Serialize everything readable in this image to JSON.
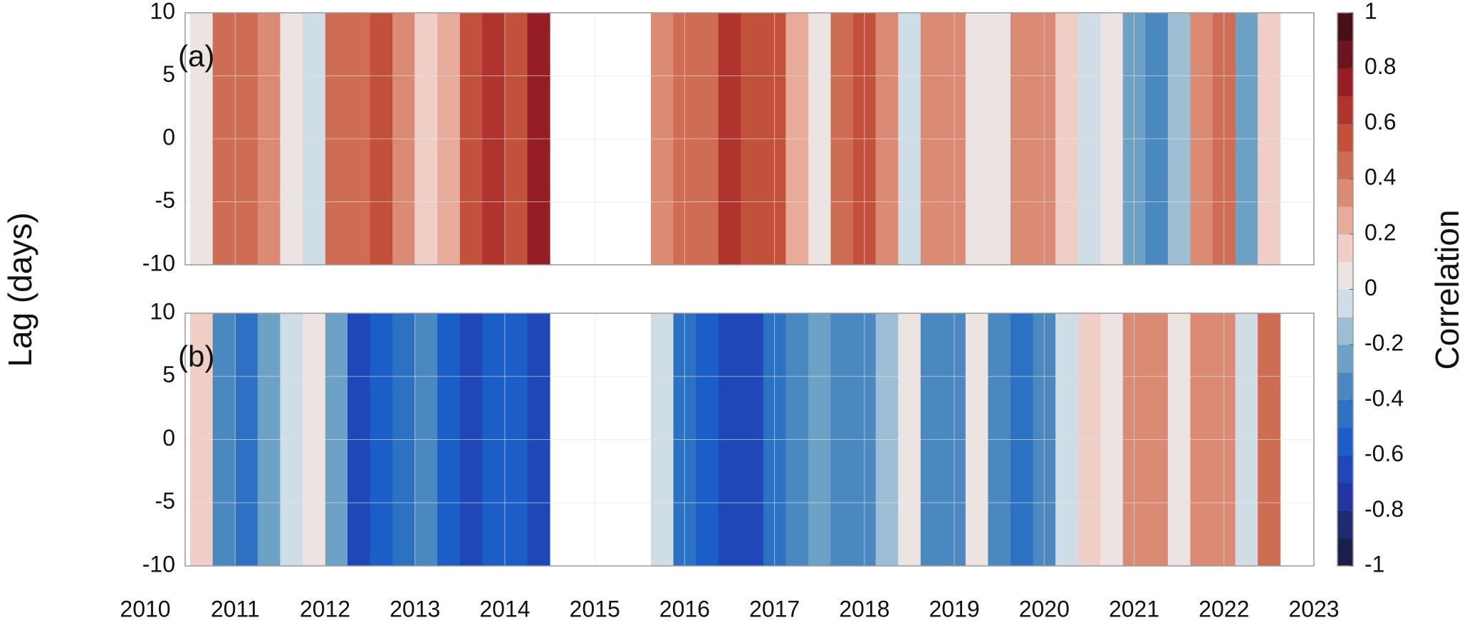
{
  "chart_data": [
    {
      "type": "heatmap",
      "label": "(a)",
      "ylabel": "Lag (days)",
      "x": [
        2010.625,
        2010.875,
        2011.125,
        2011.375,
        2011.625,
        2011.875,
        2012.125,
        2012.375,
        2012.625,
        2012.875,
        2013.125,
        2013.375,
        2013.625,
        2013.875,
        2014.125,
        2014.375,
        2015.75,
        2016.0,
        2016.25,
        2016.5,
        2016.75,
        2017.0,
        2017.25,
        2017.5,
        2017.75,
        2018.0,
        2018.25,
        2018.5,
        2018.75,
        2019.0,
        2019.25,
        2019.5,
        2019.75,
        2020.0,
        2020.25,
        2020.5,
        2020.75,
        2021.0,
        2021.25,
        2021.5,
        2021.75,
        2022.0,
        2022.25,
        2022.5
      ],
      "values": [
        0,
        0.4,
        0.4,
        0.3,
        0.05,
        -0.05,
        0.4,
        0.45,
        0.5,
        0.3,
        0.1,
        0.2,
        0.55,
        0.6,
        0.55,
        0.7,
        0.3,
        0.4,
        0.45,
        0.6,
        0.55,
        0.5,
        0.2,
        0.0,
        0.45,
        0.5,
        0.3,
        -0.05,
        0.3,
        0.35,
        0.05,
        0.0,
        0.3,
        0.35,
        0.1,
        -0.1,
        0.0,
        -0.3,
        -0.35,
        -0.2,
        0.3,
        0.4,
        -0.25,
        0.1
      ],
      "xlim": [
        2010,
        2023
      ],
      "xticks": [
        2010,
        2011,
        2012,
        2013,
        2014,
        2015,
        2016,
        2017,
        2018,
        2019,
        2020,
        2021,
        2022,
        2023
      ],
      "ylim": [
        -10,
        10
      ],
      "yticks": [
        -10,
        -5,
        0,
        5,
        10
      ],
      "grid": true,
      "colorbar": {
        "label": "Correlation",
        "lim": [
          -1,
          1
        ],
        "ticks": [
          -1,
          -0.8,
          -0.6,
          -0.4,
          -0.2,
          0,
          0.2,
          0.4,
          0.6,
          0.8,
          1
        ],
        "colors": [
          "#1a1f4a",
          "#202a70",
          "#2535a0",
          "#1f47b8",
          "#1b5ec8",
          "#2d72c2",
          "#4a88c0",
          "#6ea1c6",
          "#9dbed3",
          "#cfdde6",
          "#ebe4e2",
          "#efcfc5",
          "#e6ab9a",
          "#db8a74",
          "#cf6c54",
          "#c2513b",
          "#b0342d",
          "#961c26",
          "#6e1420",
          "#4a0f18"
        ]
      }
    },
    {
      "type": "heatmap",
      "label": "(b)",
      "x": [
        2010.625,
        2010.875,
        2011.125,
        2011.375,
        2011.625,
        2011.875,
        2012.125,
        2012.375,
        2012.625,
        2012.875,
        2013.125,
        2013.375,
        2013.625,
        2013.875,
        2014.125,
        2014.375,
        2015.75,
        2016.0,
        2016.25,
        2016.5,
        2016.75,
        2017.0,
        2017.25,
        2017.5,
        2017.75,
        2018.0,
        2018.25,
        2018.5,
        2018.75,
        2019.0,
        2019.25,
        2019.5,
        2019.75,
        2020.0,
        2020.25,
        2020.5,
        2020.75,
        2021.0,
        2021.25,
        2021.5,
        2021.75,
        2022.0,
        2022.25,
        2022.5
      ],
      "values": [
        0.15,
        -0.4,
        -0.45,
        -0.3,
        -0.05,
        0.05,
        -0.3,
        -0.65,
        -0.6,
        -0.45,
        -0.35,
        -0.55,
        -0.65,
        -0.6,
        -0.6,
        -0.65,
        -0.1,
        -0.45,
        -0.55,
        -0.7,
        -0.65,
        -0.5,
        -0.4,
        -0.3,
        -0.4,
        -0.35,
        -0.15,
        0.05,
        -0.35,
        -0.4,
        0.0,
        -0.4,
        -0.5,
        -0.35,
        -0.1,
        0.1,
        0.0,
        0.3,
        0.35,
        0.0,
        0.3,
        0.35,
        -0.1,
        0.4
      ],
      "xlim": [
        2010,
        2023
      ],
      "xticks": [
        2010,
        2011,
        2012,
        2013,
        2014,
        2015,
        2016,
        2017,
        2018,
        2019,
        2020,
        2021,
        2022,
        2023
      ],
      "ylim": [
        -10,
        10
      ],
      "yticks": [
        -10,
        -5,
        0,
        5,
        10
      ],
      "grid": true
    }
  ]
}
